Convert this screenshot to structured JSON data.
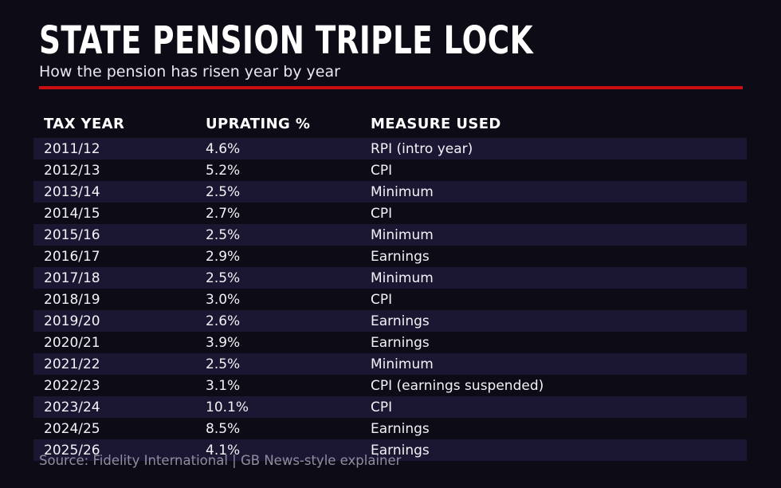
{
  "header": {
    "title": "STATE PENSION TRIPLE LOCK",
    "subtitle": "How the pension has risen year by year"
  },
  "footer": {
    "source": "Source: Fidelity International | GB News-style explainer"
  },
  "colors": {
    "background": "#0d0b16",
    "row_highlight": "#1b1733",
    "accent_red": "#cb0e12",
    "title_text": "#ffffff",
    "body_text": "#f3f2f6",
    "source_text": "#8f8e9e"
  },
  "chart_data": {
    "type": "table",
    "title": "STATE PENSION TRIPLE LOCK",
    "subtitle": "How the pension has risen year by year",
    "columns": [
      "TAX YEAR",
      "UPRATING %",
      "MEASURE USED"
    ],
    "rows": [
      [
        "2011/12",
        "4.6%",
        "RPI (intro year)"
      ],
      [
        "2012/13",
        "5.2%",
        "CPI"
      ],
      [
        "2013/14",
        "2.5%",
        "Minimum"
      ],
      [
        "2014/15",
        "2.7%",
        "CPI"
      ],
      [
        "2015/16",
        "2.5%",
        "Minimum"
      ],
      [
        "2016/17",
        "2.9%",
        "Earnings"
      ],
      [
        "2017/18",
        "2.5%",
        "Minimum"
      ],
      [
        "2018/19",
        "3.0%",
        "CPI"
      ],
      [
        "2019/20",
        "2.6%",
        "Earnings"
      ],
      [
        "2020/21",
        "3.9%",
        "Earnings"
      ],
      [
        "2021/22",
        "2.5%",
        "Minimum"
      ],
      [
        "2022/23",
        "3.1%",
        "CPI (earnings suspended)"
      ],
      [
        "2023/24",
        "10.1%",
        "CPI"
      ],
      [
        "2024/25",
        "8.5%",
        "Earnings"
      ],
      [
        "2025/26",
        "4.1%",
        "Earnings"
      ]
    ],
    "uprating_values_pct": [
      4.6,
      5.2,
      2.5,
      2.7,
      2.5,
      2.9,
      2.5,
      3.0,
      2.6,
      3.9,
      2.5,
      3.1,
      10.1,
      8.5,
      4.1
    ],
    "source": "Source: Fidelity International | GB News-style explainer",
    "layout_hints": {
      "striped_rows": "odd rows highlighted",
      "grid": false,
      "style": "dark broadcast explainer graphic"
    }
  }
}
